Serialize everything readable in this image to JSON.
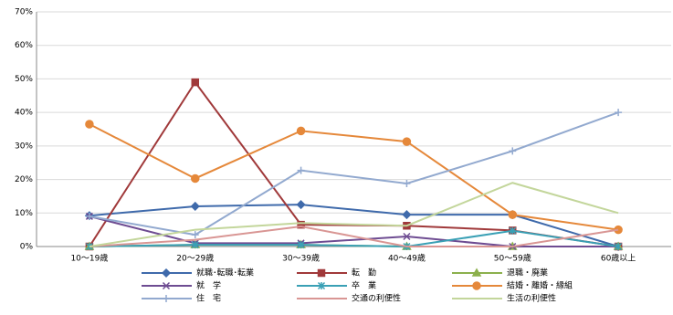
{
  "chart_data": {
    "type": "line",
    "categories": [
      "10～19歳",
      "20～29歳",
      "30～39歳",
      "40～49歳",
      "50～59歳",
      "60歳以上"
    ],
    "ylim": [
      0,
      70
    ],
    "yticks": [
      {
        "value": 0,
        "label": "0%"
      },
      {
        "value": 10,
        "label": "10%"
      },
      {
        "value": 20,
        "label": "20%"
      },
      {
        "value": 30,
        "label": "30%"
      },
      {
        "value": 40,
        "label": "40%"
      },
      {
        "value": 50,
        "label": "50%"
      },
      {
        "value": 60,
        "label": "60%"
      },
      {
        "value": 70,
        "label": "70%"
      }
    ],
    "grid": true,
    "series": [
      {
        "name": "就職･転職･転業",
        "color": "#3f6aab",
        "marker": "diamond",
        "values": [
          9.2,
          12,
          12.5,
          9.5,
          9.5,
          0
        ]
      },
      {
        "name": "転　勤",
        "color": "#a0393a",
        "marker": "square",
        "values": [
          0,
          49,
          6.5,
          6.2,
          4.8,
          0
        ]
      },
      {
        "name": "退職・廃業",
        "color": "#8cb04c",
        "marker": "triangle",
        "values": [
          0,
          0.5,
          0.5,
          0,
          0,
          0
        ]
      },
      {
        "name": "就　学",
        "color": "#6e4c92",
        "marker": "x",
        "values": [
          9,
          1,
          1,
          3,
          0,
          0
        ]
      },
      {
        "name": "卒　業",
        "color": "#3aa0b5",
        "marker": "star",
        "values": [
          0,
          0.5,
          0.5,
          0,
          4.7,
          0
        ]
      },
      {
        "name": "結婚・離婚・縁組",
        "color": "#e5883a",
        "marker": "circle",
        "values": [
          36.5,
          20.3,
          34.5,
          31.3,
          9.5,
          5
        ]
      },
      {
        "name": "住　宅",
        "color": "#92a9cf",
        "marker": "plus",
        "values": [
          9,
          3.5,
          22.7,
          18.8,
          28.5,
          40
        ]
      },
      {
        "name": "交通の利便性",
        "color": "#d99694",
        "marker": "none",
        "values": [
          0,
          2,
          6,
          0,
          0,
          5
        ]
      },
      {
        "name": "生活の利便性",
        "color": "#c3d69b",
        "marker": "none",
        "values": [
          0,
          5,
          7,
          6.2,
          19,
          10
        ]
      }
    ]
  }
}
